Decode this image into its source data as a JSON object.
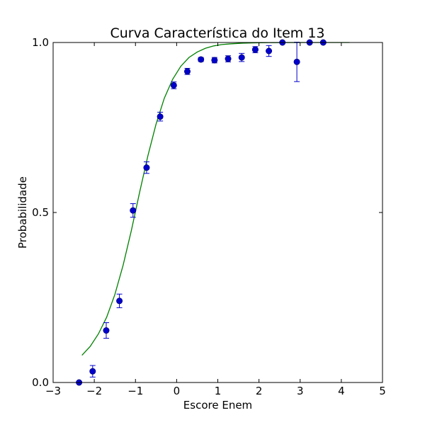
{
  "chart_data": {
    "type": "scatter",
    "title": "Curva Característica do Item 13",
    "xlabel": "Escore Enem",
    "ylabel": "Probabilidade",
    "xlim": [
      -3,
      5
    ],
    "ylim": [
      0,
      1
    ],
    "xticks": [
      -3,
      -2,
      -1,
      0,
      1,
      2,
      3,
      4,
      5
    ],
    "xtick_labels": [
      "−3",
      "−2",
      "−1",
      "0",
      "1",
      "2",
      "3",
      "4",
      "5"
    ],
    "yticks": [
      0,
      0.5,
      1
    ],
    "ytick_labels": [
      "0.0",
      "0.5",
      "1.0"
    ],
    "grid": false,
    "colors": {
      "points": "#0000cc",
      "errorbars": "#0000cc",
      "curve": "#008000"
    },
    "series": [
      {
        "type": "scatter",
        "x": [
          -2.37,
          -2.04,
          -1.71,
          -1.39,
          -1.06,
          -0.73,
          -0.4,
          -0.07,
          0.26,
          0.59,
          0.92,
          1.25,
          1.58,
          1.91,
          2.24,
          2.57,
          2.92,
          3.23,
          3.56
        ],
        "y": [
          0.0,
          0.033,
          0.153,
          0.24,
          0.506,
          0.632,
          0.782,
          0.874,
          0.915,
          0.95,
          0.948,
          0.952,
          0.956,
          0.979,
          0.975,
          1.0,
          0.943,
          1.0,
          1.0
        ],
        "yerr": [
          0.0,
          0.017,
          0.023,
          0.02,
          0.02,
          0.017,
          0.013,
          0.01,
          0.009,
          0.006,
          0.008,
          0.009,
          0.012,
          0.009,
          0.016,
          0.0,
          0.058,
          0.0,
          0.0
        ]
      },
      {
        "type": "line",
        "x": [
          -2.3,
          -2.1,
          -1.9,
          -1.7,
          -1.5,
          -1.3,
          -1.1,
          -0.9,
          -0.7,
          -0.5,
          -0.3,
          -0.1,
          0.1,
          0.3,
          0.5,
          0.7,
          0.9,
          1.1,
          1.3,
          1.6,
          1.9,
          2.2,
          2.6,
          3.0,
          3.5,
          4.0,
          4.2
        ],
        "y": [
          0.08,
          0.106,
          0.143,
          0.192,
          0.259,
          0.345,
          0.447,
          0.559,
          0.666,
          0.76,
          0.836,
          0.891,
          0.93,
          0.956,
          0.972,
          0.983,
          0.99,
          0.994,
          0.996,
          0.998,
          0.9991,
          0.9996,
          0.9999,
          1.0,
          1.0,
          1.0,
          1.0
        ]
      }
    ]
  }
}
